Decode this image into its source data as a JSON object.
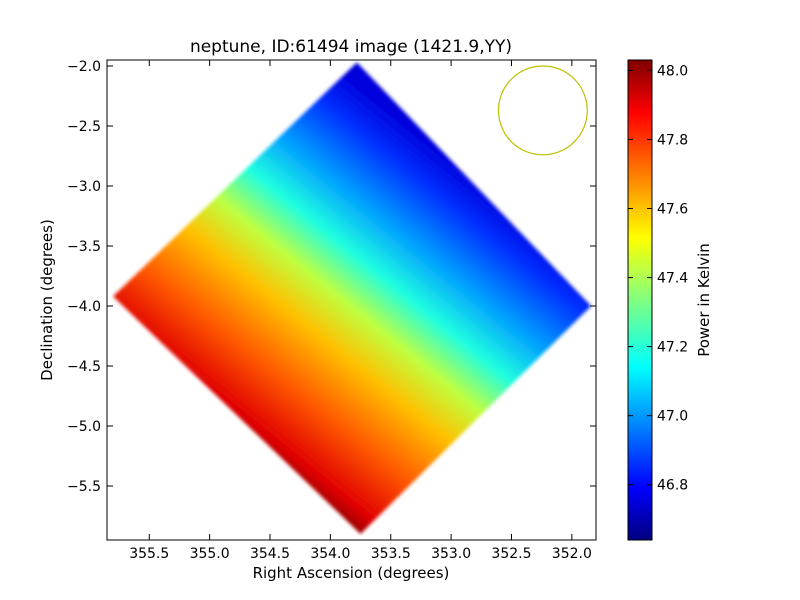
{
  "chart_data": {
    "type": "heatmap",
    "title": "neptune, ID:61494 image (1421.9,YY)",
    "xlabel": "Right Ascension (degrees)",
    "ylabel": "Declination (degrees)",
    "xlim": [
      355.85,
      351.8
    ],
    "ylim": [
      -5.95,
      -1.95
    ],
    "x_ticks": [
      355.5,
      355.0,
      354.5,
      354.0,
      353.5,
      353.0,
      352.5,
      352.0
    ],
    "x_tick_labels": [
      "355.5",
      "355.0",
      "354.5",
      "354.0",
      "353.5",
      "353.0",
      "352.5",
      "352.0"
    ],
    "y_ticks": [
      -2.0,
      -2.5,
      -3.0,
      -3.5,
      -4.0,
      -4.5,
      -5.0,
      -5.5
    ],
    "y_tick_labels": [
      "−2.0",
      "−2.5",
      "−3.0",
      "−3.5",
      "−4.0",
      "−4.5",
      "−5.0",
      "−5.5"
    ],
    "colormap": "jet",
    "colorbar": {
      "label": "Power in Kelvin",
      "min": 46.64,
      "max": 48.03,
      "ticks": [
        46.8,
        47.0,
        47.2,
        47.4,
        47.6,
        47.8,
        48.0
      ],
      "tick_labels": [
        "46.8",
        "47.0",
        "47.2",
        "47.4",
        "47.6",
        "47.8",
        "48.0"
      ]
    },
    "region": {
      "shape": "diamond",
      "vertices": [
        [
          353.78,
          -1.97
        ],
        [
          351.84,
          -4.0
        ],
        [
          353.75,
          -5.9
        ],
        [
          355.8,
          -3.92
        ]
      ]
    },
    "gradient": {
      "high_corner": [
        353.9,
        -5.85
      ],
      "high_value": 48.0,
      "low_corner": [
        352.05,
        -3.55
      ],
      "low_value": 46.7
    },
    "beam": {
      "center": [
        352.24,
        -2.37
      ],
      "radius_deg": 0.37,
      "color": "#bfbf00"
    },
    "grid": false
  }
}
